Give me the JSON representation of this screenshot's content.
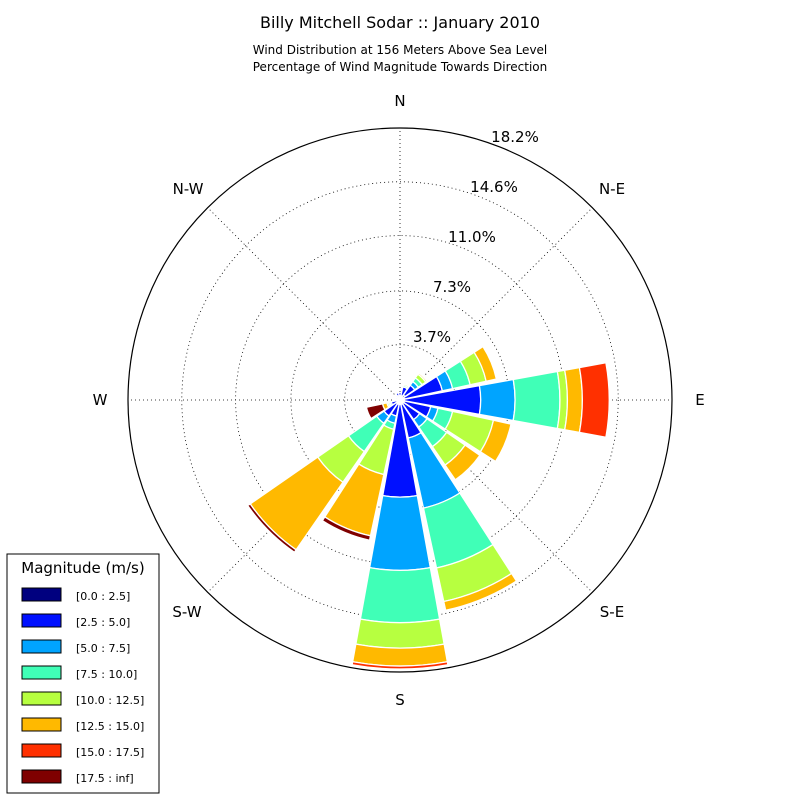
{
  "chart_data": {
    "type": "windrose",
    "title": "Billy Mitchell Sodar :: January 2010",
    "subtitle_lines": [
      "Wind Distribution at 156 Meters Above Sea Level",
      "Percentage of Wind Magnitude Towards Direction"
    ],
    "direction_labels": [
      "N",
      "N-E",
      "E",
      "S-E",
      "S",
      "S-W",
      "W",
      "N-W"
    ],
    "ring_labels": [
      "3.7%",
      "7.3%",
      "11.0%",
      "14.6%",
      "18.2%"
    ],
    "ring_values": [
      3.7,
      7.3,
      11.0,
      14.6,
      18.2
    ],
    "rmax": 18.2,
    "grid": true,
    "legend_position": "bottom-left",
    "legend": {
      "title": "Magnitude (m/s)",
      "bins": [
        {
          "label": "[0.0 : 2.5]",
          "color": "#00007f"
        },
        {
          "label": "[2.5 : 5.0]",
          "color": "#0010ff"
        },
        {
          "label": "[5.0 : 7.5]",
          "color": "#00a4ff"
        },
        {
          "label": "[7.5 : 10.0]",
          "color": "#40ffb7"
        },
        {
          "label": "[10.0 : 12.5]",
          "color": "#b7ff40"
        },
        {
          "label": "[12.5 : 15.0]",
          "color": "#ffb900"
        },
        {
          "label": "[15.0 : 17.5]",
          "color": "#ff3000"
        },
        {
          "label": "[17.5 : inf]",
          "color": "#7f0000"
        }
      ]
    },
    "sectors": [
      {
        "direction": 0,
        "cumulative": [
          0.3,
          0.5,
          0.5,
          0.5,
          0.5,
          0.5,
          0.5,
          0.5
        ]
      },
      {
        "direction": 22.5,
        "cumulative": [
          0.3,
          0.9,
          0.9,
          1.0,
          1.1,
          1.1,
          1.1,
          1.1
        ]
      },
      {
        "direction": 45,
        "cumulative": [
          0.4,
          1.2,
          1.5,
          1.8,
          2.1,
          2.2,
          2.2,
          2.2
        ]
      },
      {
        "direction": 67.5,
        "cumulative": [
          0.3,
          2.9,
          3.6,
          4.8,
          5.9,
          6.6,
          6.6,
          6.6
        ]
      },
      {
        "direction": 90,
        "cumulative": [
          0.3,
          5.4,
          7.7,
          10.7,
          11.2,
          12.2,
          14.0,
          14.0
        ]
      },
      {
        "direction": 112.5,
        "cumulative": [
          0.3,
          2.1,
          2.6,
          3.6,
          6.4,
          7.6,
          7.6,
          7.6
        ]
      },
      {
        "direction": 135,
        "cumulative": [
          0.3,
          1.6,
          2.2,
          3.8,
          5.3,
          6.5,
          6.5,
          6.5
        ]
      },
      {
        "direction": 157.5,
        "cumulative": [
          0.3,
          2.6,
          7.4,
          11.5,
          13.8,
          14.4,
          14.4,
          14.4
        ]
      },
      {
        "direction": 180,
        "cumulative": [
          0.3,
          6.5,
          11.4,
          14.9,
          16.6,
          17.8,
          18.0,
          18.0
        ]
      },
      {
        "direction": 202.5,
        "cumulative": [
          0.3,
          1.1,
          1.6,
          2.0,
          5.1,
          9.3,
          9.3,
          9.6
        ]
      },
      {
        "direction": 225,
        "cumulative": [
          0.3,
          1.3,
          1.9,
          4.2,
          6.7,
          12.2,
          12.2,
          12.4
        ]
      },
      {
        "direction": 247.5,
        "cumulative": [
          0.2,
          0.6,
          0.7,
          0.8,
          0.9,
          1.2,
          1.2,
          2.3
        ]
      },
      {
        "direction": 270,
        "cumulative": [
          0.2,
          0.3,
          0.3,
          0.3,
          0.3,
          0.3,
          0.3,
          0.3
        ]
      },
      {
        "direction": 292.5,
        "cumulative": [
          0.2,
          0.3,
          0.3,
          0.3,
          0.3,
          0.3,
          0.3,
          0.3
        ]
      },
      {
        "direction": 315,
        "cumulative": [
          0.2,
          0.3,
          0.3,
          0.3,
          0.3,
          0.3,
          0.3,
          0.3
        ]
      },
      {
        "direction": 337.5,
        "cumulative": [
          0.3,
          0.5,
          0.5,
          0.5,
          0.5,
          0.5,
          0.5,
          0.5
        ]
      }
    ]
  }
}
